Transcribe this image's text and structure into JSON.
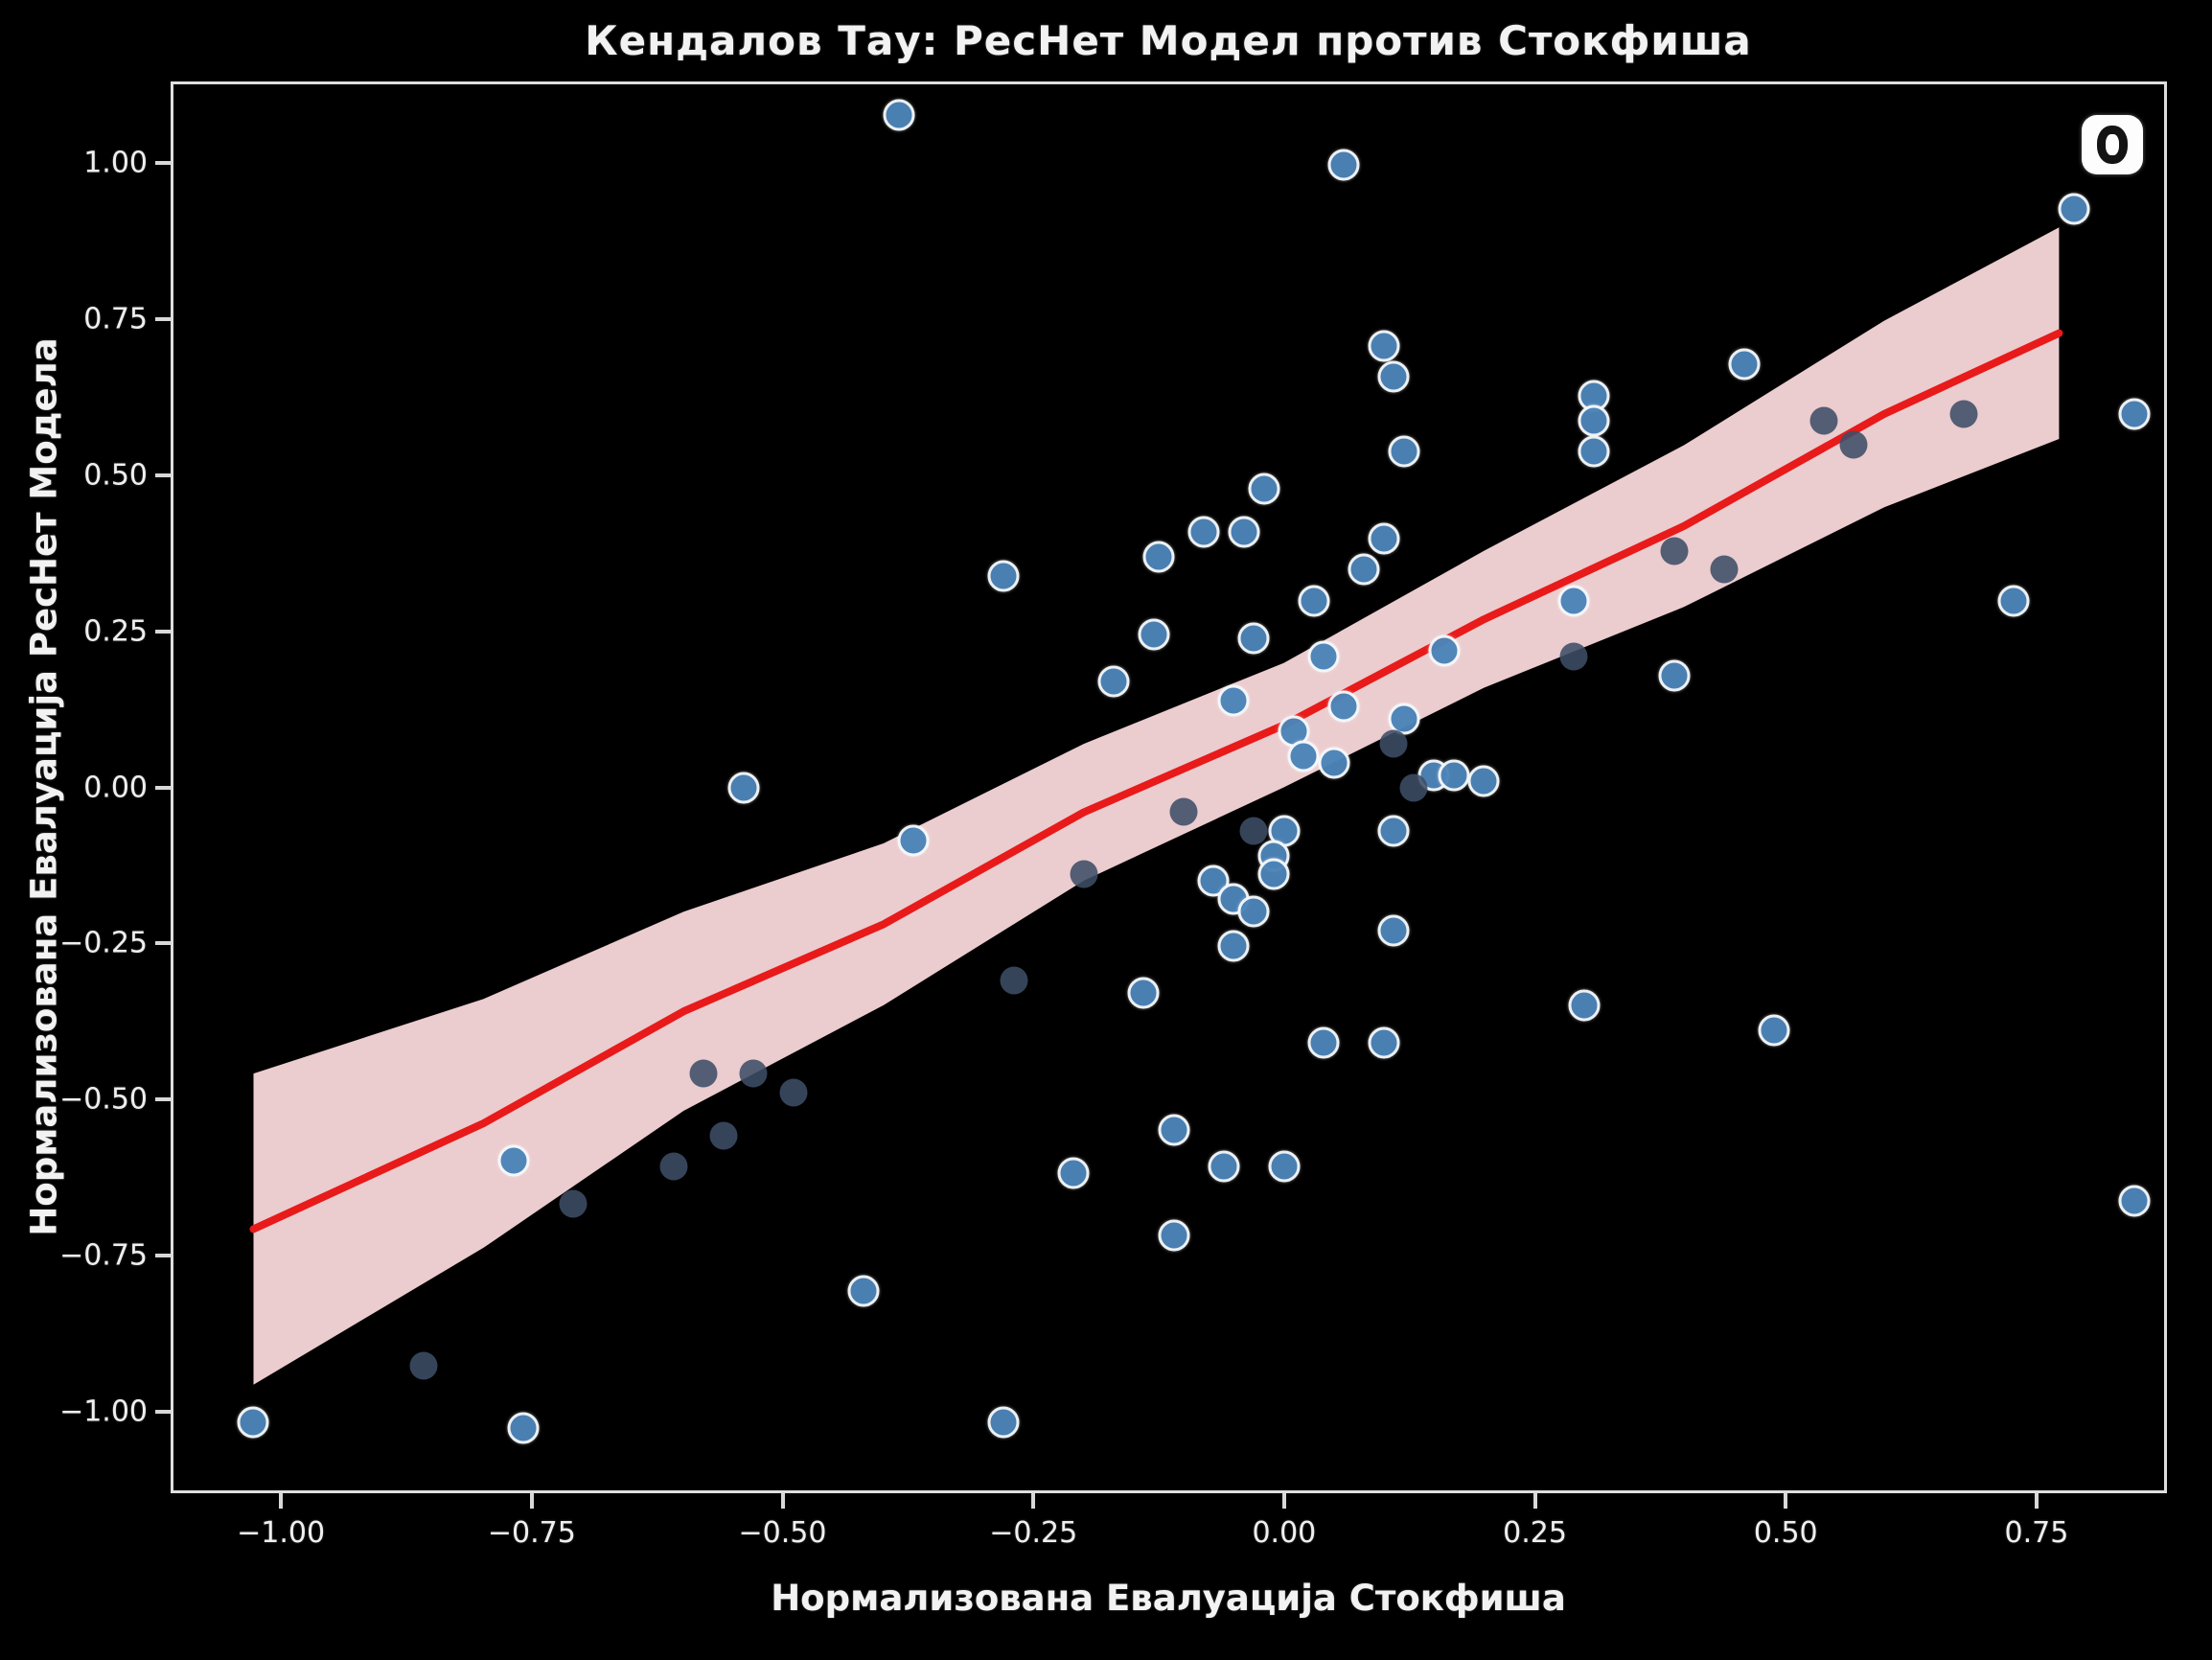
{
  "title": "Кендалов Тау: РесНет Модел против Стокфиша",
  "chart_data": {
    "type": "scatter",
    "title": "Кендалов Тау: РесНет Модел против Стокфиша",
    "xlabel": "Нормализована Евалуација Стокфиша",
    "ylabel": "Нормализована Евалуација РесНет Модела",
    "xlim": [
      -1.11,
      0.88
    ],
    "ylim": [
      -1.13,
      1.13
    ],
    "x_ticks": [
      -1.0,
      -0.75,
      -0.5,
      -0.25,
      0.0,
      0.25,
      0.5,
      0.75
    ],
    "y_ticks": [
      1.0,
      0.75,
      0.5,
      0.25,
      0.0,
      -0.25,
      -0.5,
      -0.75,
      -1.0
    ],
    "grid": false,
    "background": "#000000",
    "series": [
      {
        "name": "resnet-vs-stockfish-points",
        "marker_color": "#4d84b8",
        "marker_edge": "#ffffff",
        "points": [
          [
            -0.385,
            1.08
          ],
          [
            0.06,
            1.0
          ],
          [
            0.79,
            0.93
          ],
          [
            0.1,
            0.71
          ],
          [
            0.11,
            0.66
          ],
          [
            0.46,
            0.68
          ],
          [
            0.31,
            0.63
          ],
          [
            0.31,
            0.59
          ],
          [
            0.31,
            0.54
          ],
          [
            0.12,
            0.54
          ],
          [
            -0.02,
            0.48
          ],
          [
            -0.08,
            0.41
          ],
          [
            -0.04,
            0.41
          ],
          [
            0.1,
            0.4
          ],
          [
            -0.28,
            0.34
          ],
          [
            -0.125,
            0.37
          ],
          [
            0.08,
            0.35
          ],
          [
            0.03,
            0.3
          ],
          [
            0.29,
            0.3
          ],
          [
            0.73,
            0.3
          ],
          [
            0.85,
            0.6
          ],
          [
            -0.03,
            0.24
          ],
          [
            -0.13,
            0.245
          ],
          [
            -0.17,
            0.17
          ],
          [
            0.04,
            0.21
          ],
          [
            0.16,
            0.22
          ],
          [
            -0.05,
            0.14
          ],
          [
            0.06,
            0.13
          ],
          [
            0.39,
            0.18
          ],
          [
            0.01,
            0.09
          ],
          [
            0.02,
            0.05
          ],
          [
            0.05,
            0.04
          ],
          [
            0.12,
            0.11
          ],
          [
            0.15,
            0.02
          ],
          [
            0.17,
            0.02
          ],
          [
            0.2,
            0.01
          ],
          [
            -0.54,
            0.0
          ],
          [
            0.0,
            -0.07
          ],
          [
            -0.01,
            -0.11
          ],
          [
            -0.01,
            -0.14
          ],
          [
            0.11,
            -0.07
          ],
          [
            -0.37,
            -0.085
          ],
          [
            -0.07,
            -0.15
          ],
          [
            -0.05,
            -0.18
          ],
          [
            -0.03,
            -0.2
          ],
          [
            -0.05,
            -0.255
          ],
          [
            0.11,
            -0.23
          ],
          [
            -0.14,
            -0.33
          ],
          [
            0.04,
            -0.41
          ],
          [
            0.1,
            -0.41
          ],
          [
            0.3,
            -0.35
          ],
          [
            0.49,
            -0.39
          ],
          [
            0.0,
            -0.61
          ],
          [
            -0.06,
            -0.61
          ],
          [
            -0.11,
            -0.55
          ],
          [
            -0.11,
            -0.72
          ],
          [
            -0.21,
            -0.62
          ],
          [
            -0.77,
            -0.6
          ],
          [
            -0.42,
            -0.81
          ],
          [
            -1.03,
            -1.02
          ],
          [
            -0.76,
            -1.03
          ],
          [
            -0.28,
            -1.02
          ],
          [
            0.85,
            -0.665
          ]
        ]
      },
      {
        "name": "overlap-points",
        "marker_color": "#3e4d66",
        "marker_edge": "none",
        "points": [
          [
            0.54,
            0.59
          ],
          [
            0.57,
            0.55
          ],
          [
            0.68,
            0.6
          ],
          [
            0.39,
            0.38
          ],
          [
            0.44,
            0.35
          ],
          [
            0.29,
            0.21
          ],
          [
            0.11,
            0.07
          ],
          [
            0.13,
            0.0
          ],
          [
            -0.1,
            -0.04
          ],
          [
            -0.03,
            -0.07
          ],
          [
            -0.2,
            -0.14
          ],
          [
            -0.27,
            -0.31
          ],
          [
            -0.58,
            -0.46
          ],
          [
            -0.53,
            -0.46
          ],
          [
            -0.49,
            -0.49
          ],
          [
            -0.56,
            -0.56
          ],
          [
            -0.61,
            -0.61
          ],
          [
            -0.71,
            -0.67
          ],
          [
            -0.86,
            -0.93
          ]
        ]
      }
    ],
    "regression_line": {
      "color": "#e81a1a",
      "x": [
        -1.03,
        -0.8,
        -0.6,
        -0.4,
        -0.2,
        0.0,
        0.2,
        0.4,
        0.6,
        0.775
      ],
      "y": [
        -0.71,
        -0.54,
        -0.36,
        -0.22,
        -0.04,
        0.1,
        0.27,
        0.42,
        0.6,
        0.73
      ]
    },
    "ci_band": {
      "color": "#f8d7da",
      "x": [
        -1.03,
        -0.8,
        -0.6,
        -0.4,
        -0.2,
        0.0,
        0.2,
        0.4,
        0.6,
        0.775
      ],
      "upper": [
        -0.46,
        -0.34,
        -0.2,
        -0.09,
        0.07,
        0.2,
        0.38,
        0.55,
        0.75,
        0.9
      ],
      "lower": [
        -0.96,
        -0.74,
        -0.52,
        -0.35,
        -0.15,
        0.0,
        0.16,
        0.29,
        0.45,
        0.56
      ]
    }
  },
  "badge": {
    "name": "logo-badge"
  }
}
